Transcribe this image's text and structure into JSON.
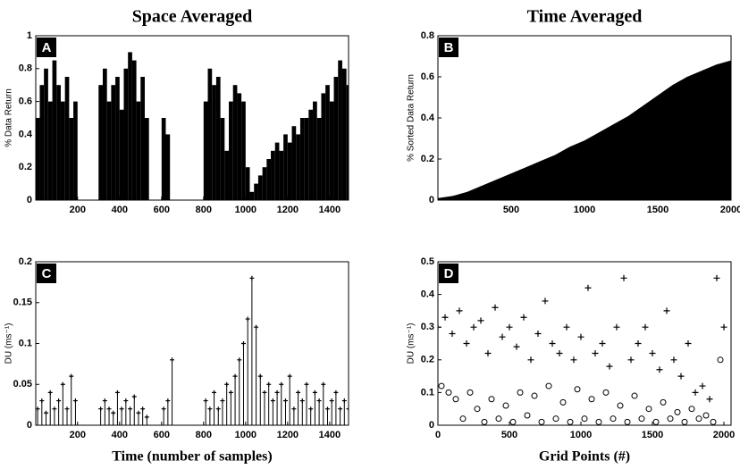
{
  "chart_data": [
    {
      "type": "bar",
      "title": "Space Averaged",
      "panel_label": "A",
      "y_label": "% Data Return",
      "color": "#000000",
      "x": [
        10,
        30,
        50,
        70,
        90,
        110,
        130,
        150,
        170,
        190,
        210,
        230,
        250,
        270,
        290,
        310,
        330,
        350,
        370,
        390,
        410,
        430,
        450,
        470,
        490,
        510,
        530,
        550,
        570,
        590,
        610,
        630,
        650,
        670,
        690,
        710,
        730,
        750,
        770,
        790,
        810,
        830,
        850,
        870,
        890,
        910,
        930,
        950,
        970,
        990,
        1010,
        1030,
        1050,
        1070,
        1090,
        1110,
        1130,
        1150,
        1170,
        1190,
        1210,
        1230,
        1250,
        1270,
        1290,
        1310,
        1330,
        1350,
        1370,
        1390,
        1410,
        1430,
        1450,
        1470,
        1490
      ],
      "values": [
        0.5,
        0.7,
        0.8,
        0.6,
        0.85,
        0.7,
        0.6,
        0.75,
        0.5,
        0.6,
        0,
        0,
        0,
        0,
        0,
        0.7,
        0.8,
        0.6,
        0.7,
        0.75,
        0.55,
        0.8,
        0.9,
        0.85,
        0.6,
        0.75,
        0.5,
        0,
        0,
        0,
        0.5,
        0.4,
        0,
        0,
        0,
        0,
        0,
        0,
        0,
        0,
        0.6,
        0.8,
        0.7,
        0.75,
        0.5,
        0.3,
        0.6,
        0.7,
        0.65,
        0.6,
        0.2,
        0.05,
        0.1,
        0.15,
        0.2,
        0.25,
        0.3,
        0.35,
        0.3,
        0.4,
        0.35,
        0.45,
        0.4,
        0.5,
        0.5,
        0.55,
        0.6,
        0.5,
        0.65,
        0.7,
        0.6,
        0.75,
        0.85,
        0.8,
        0.7
      ],
      "xlim": [
        1,
        1490
      ],
      "xticks": [
        200,
        400,
        600,
        800,
        1000,
        1200,
        1400
      ],
      "ylim": [
        0,
        1
      ],
      "yticks": [
        0,
        0.2,
        0.4,
        0.6,
        0.8,
        1
      ]
    },
    {
      "type": "area",
      "title": "Time Averaged",
      "panel_label": "B",
      "y_label": "% Sorted Data Return",
      "color": "#000000",
      "x": [
        0,
        100,
        200,
        300,
        400,
        500,
        600,
        700,
        800,
        900,
        1000,
        1100,
        1200,
        1300,
        1400,
        1500,
        1600,
        1700,
        1800,
        1900,
        2000
      ],
      "values": [
        0.01,
        0.02,
        0.04,
        0.07,
        0.1,
        0.13,
        0.16,
        0.19,
        0.22,
        0.26,
        0.29,
        0.33,
        0.37,
        0.41,
        0.46,
        0.51,
        0.56,
        0.6,
        0.63,
        0.66,
        0.68
      ],
      "xlim": [
        0,
        2000
      ],
      "xticks": [
        500,
        1000,
        1500,
        2000
      ],
      "ylim": [
        0,
        0.8
      ],
      "yticks": [
        0,
        0.2,
        0.4,
        0.6,
        0.8
      ]
    },
    {
      "type": "stem",
      "panel_label": "C",
      "y_label": "DU (ms⁻¹)",
      "x_label": "Time (number of samples)",
      "color": "#000000",
      "x": [
        10,
        30,
        50,
        70,
        90,
        110,
        130,
        150,
        170,
        190,
        210,
        230,
        250,
        270,
        290,
        310,
        330,
        350,
        370,
        390,
        410,
        430,
        450,
        470,
        490,
        510,
        530,
        550,
        570,
        590,
        610,
        630,
        650,
        670,
        690,
        710,
        730,
        750,
        770,
        790,
        810,
        830,
        850,
        870,
        890,
        910,
        930,
        950,
        970,
        990,
        1010,
        1030,
        1050,
        1070,
        1090,
        1110,
        1130,
        1150,
        1170,
        1190,
        1210,
        1230,
        1250,
        1270,
        1290,
        1310,
        1330,
        1350,
        1370,
        1390,
        1410,
        1430,
        1450,
        1470,
        1490
      ],
      "values": [
        0.02,
        0.03,
        0.015,
        0.04,
        0.02,
        0.03,
        0.05,
        0.02,
        0.06,
        0.03,
        null,
        null,
        null,
        null,
        null,
        0.02,
        0.03,
        0.02,
        0.015,
        0.04,
        0.02,
        0.03,
        0.02,
        0.035,
        0.015,
        0.02,
        0.01,
        null,
        null,
        null,
        0.02,
        0.03,
        0.08,
        null,
        null,
        null,
        null,
        null,
        null,
        null,
        0.03,
        0.02,
        0.04,
        0.02,
        0.03,
        0.05,
        0.04,
        0.06,
        0.08,
        0.1,
        0.13,
        0.18,
        0.12,
        0.06,
        0.04,
        0.05,
        0.03,
        0.04,
        0.05,
        0.03,
        0.06,
        0.02,
        0.04,
        0.03,
        0.05,
        0.02,
        0.04,
        0.03,
        0.05,
        0.02,
        0.03,
        0.04,
        0.02,
        0.03,
        0.02
      ],
      "xlim": [
        1,
        1490
      ],
      "xticks": [
        200,
        400,
        600,
        800,
        1000,
        1200,
        1400
      ],
      "ylim": [
        0,
        0.2
      ],
      "yticks": [
        0,
        0.05,
        0.1,
        0.15,
        0.2
      ]
    },
    {
      "type": "scatter",
      "panel_label": "D",
      "y_label": "DU (ms⁻¹)",
      "x_label": "Grid Points (#)",
      "series": [
        {
          "marker": "+",
          "color": "#000000",
          "x": [
            0,
            50,
            100,
            150,
            200,
            250,
            300,
            350,
            400,
            450,
            500,
            550,
            600,
            650,
            700,
            750,
            800,
            850,
            900,
            950,
            1000,
            1050,
            1100,
            1150,
            1200,
            1250,
            1300,
            1350,
            1400,
            1450,
            1500,
            1550,
            1600,
            1650,
            1700,
            1750,
            1800,
            1850,
            1900,
            1950,
            2000
          ],
          "values": [
            0.3,
            0.33,
            0.28,
            0.35,
            0.25,
            0.3,
            0.32,
            0.22,
            0.36,
            0.27,
            0.3,
            0.24,
            0.33,
            0.2,
            0.28,
            0.38,
            0.25,
            0.22,
            0.3,
            0.2,
            0.27,
            0.42,
            0.22,
            0.25,
            0.18,
            0.3,
            0.45,
            0.2,
            0.25,
            0.3,
            0.22,
            0.17,
            0.35,
            0.2,
            0.15,
            0.25,
            0.1,
            0.12,
            0.08,
            0.45,
            0.3
          ]
        },
        {
          "marker": "o",
          "color": "#000000",
          "x": [
            25,
            75,
            125,
            175,
            225,
            275,
            325,
            375,
            425,
            475,
            525,
            575,
            625,
            675,
            725,
            775,
            825,
            875,
            925,
            975,
            1025,
            1075,
            1125,
            1175,
            1225,
            1275,
            1325,
            1375,
            1425,
            1475,
            1525,
            1575,
            1625,
            1675,
            1725,
            1775,
            1825,
            1875,
            1925,
            1975
          ],
          "values": [
            0.12,
            0.1,
            0.08,
            0.02,
            0.1,
            0.05,
            0.01,
            0.08,
            0.02,
            0.06,
            0.01,
            0.1,
            0.03,
            0.09,
            0.01,
            0.12,
            0.02,
            0.07,
            0.01,
            0.11,
            0.02,
            0.08,
            0.01,
            0.1,
            0.02,
            0.06,
            0.01,
            0.09,
            0.02,
            0.05,
            0.01,
            0.07,
            0.02,
            0.04,
            0.01,
            0.05,
            0.02,
            0.03,
            0.01,
            0.2
          ]
        }
      ],
      "xlim": [
        0,
        2050
      ],
      "xticks": [
        0,
        500,
        1000,
        1500,
        2000
      ],
      "ylim": [
        0,
        0.5
      ],
      "yticks": [
        0,
        0.1,
        0.2,
        0.3,
        0.4,
        0.5
      ]
    }
  ]
}
